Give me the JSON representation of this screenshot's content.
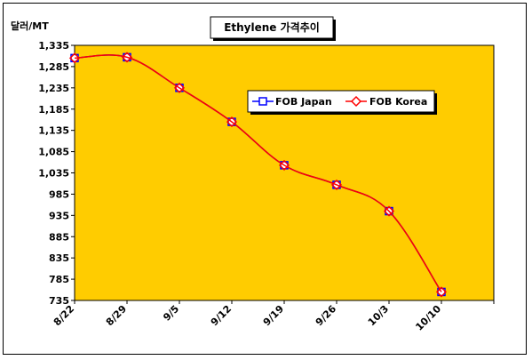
{
  "chart_data": {
    "type": "line",
    "title": "Ethylene 가격추이",
    "ylabel": "달러/MT",
    "xlabel": "",
    "categories": [
      "8/22",
      "8/29",
      "9/5",
      "9/12",
      "9/19",
      "9/26",
      "10/3",
      "10/10"
    ],
    "ylim": [
      735,
      1335
    ],
    "yticks": [
      735,
      785,
      835,
      885,
      935,
      985,
      1035,
      1085,
      1135,
      1185,
      1235,
      1285,
      1335
    ],
    "grid": false,
    "legend_position": "top-right",
    "plot_background": "#FFCC00",
    "series": [
      {
        "name": "FOB Japan",
        "color": "#0000FF",
        "marker": "square",
        "values": [
          1305,
          1307,
          1235,
          1155,
          1053,
          1007,
          945,
          755
        ]
      },
      {
        "name": "FOB Korea",
        "color": "#FF0000",
        "marker": "diamond",
        "values": [
          1305,
          1307,
          1235,
          1155,
          1053,
          1007,
          945,
          755
        ]
      }
    ]
  }
}
